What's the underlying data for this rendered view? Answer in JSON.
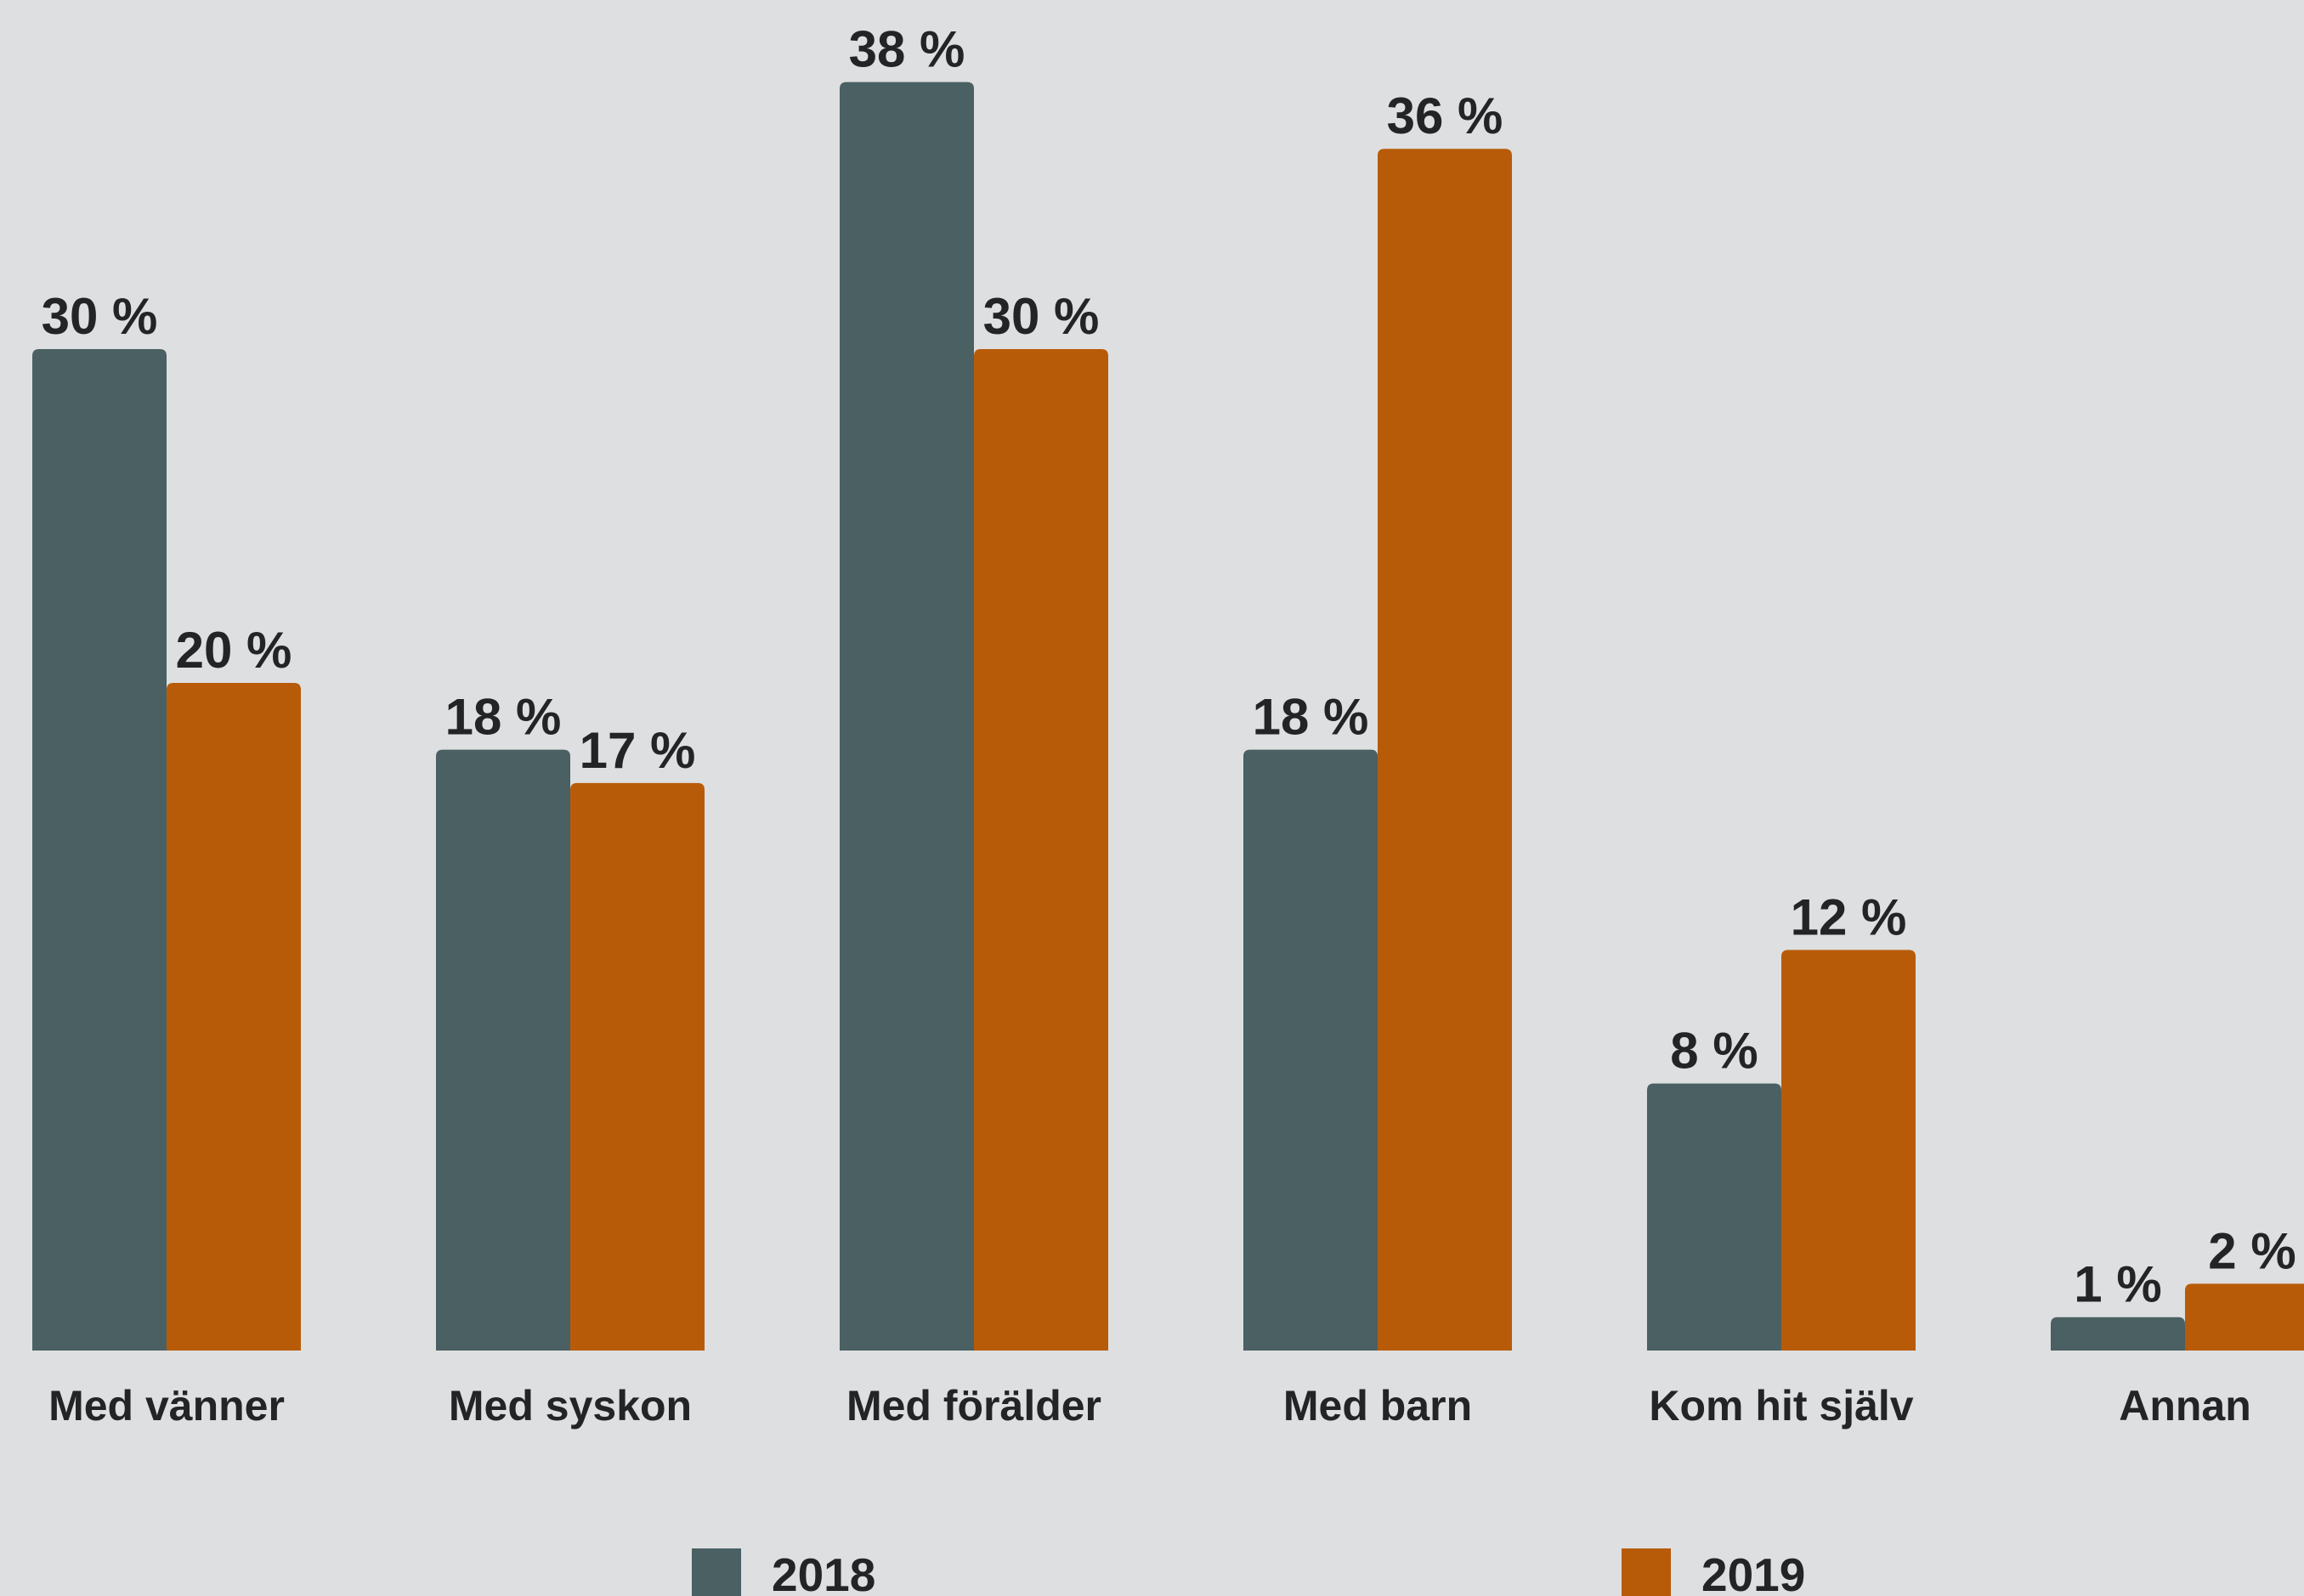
{
  "chart_data": {
    "type": "bar",
    "categories": [
      "Med vänner",
      "Med syskon",
      "Med förälder",
      "Med barn",
      "Kom hit själv",
      "Annan"
    ],
    "series": [
      {
        "name": "2018",
        "color": "#4a6063",
        "values": [
          30,
          18,
          38,
          18,
          8,
          1
        ],
        "labels": [
          "30 %",
          "18 %",
          "38 %",
          "18 %",
          "8 %",
          "1 %"
        ]
      },
      {
        "name": "2019",
        "color": "#b85b08",
        "values": [
          20,
          17,
          30,
          36,
          12,
          2
        ],
        "labels": [
          "20 %",
          "17 %",
          "30 %",
          "36 %",
          "12 %",
          "2 %"
        ]
      }
    ],
    "ylim": [
      0,
      38
    ],
    "grid": false,
    "legend": "bottom",
    "background": "#dedfe0"
  }
}
